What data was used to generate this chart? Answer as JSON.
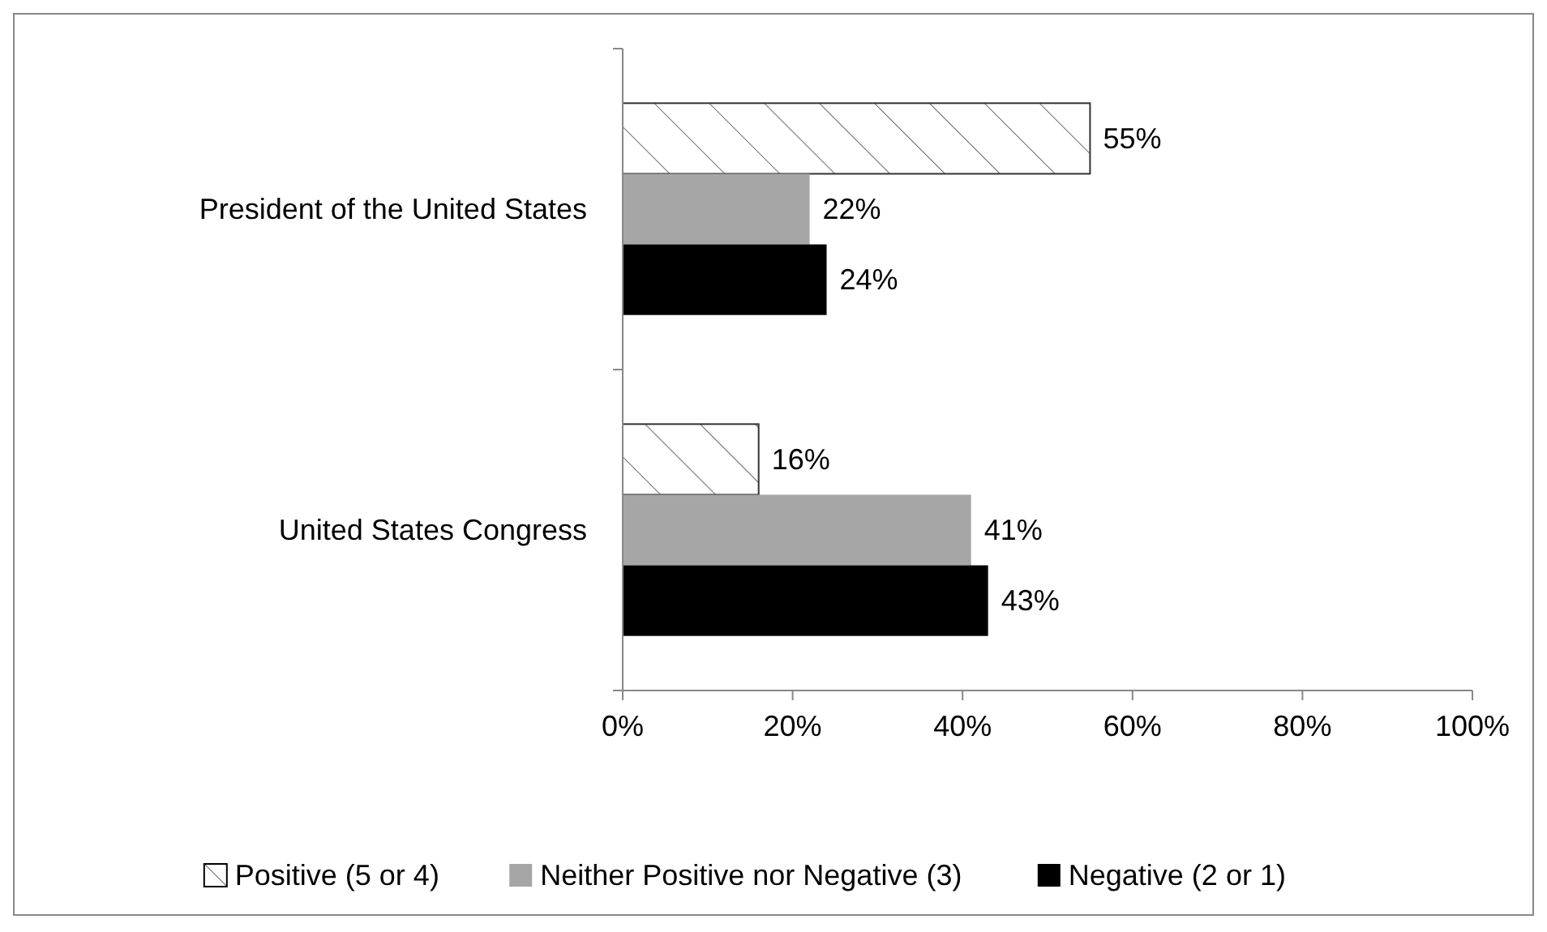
{
  "chart_data": {
    "type": "bar",
    "orientation": "horizontal",
    "categories": [
      "President of the United States",
      "United States Congress"
    ],
    "series": [
      {
        "name": "Positive (5 or 4)",
        "color": "#ffffff",
        "values": [
          55,
          16
        ],
        "value_labels": [
          "55%",
          "16%"
        ]
      },
      {
        "name": "Neither Positive nor Negative (3)",
        "color": "#a6a6a6",
        "values": [
          22,
          41
        ],
        "value_labels": [
          "22%",
          "41%"
        ]
      },
      {
        "name": "Negative (2 or 1)",
        "color": "#000000",
        "values": [
          24,
          43
        ],
        "value_labels": [
          "24%",
          "43%"
        ]
      }
    ],
    "xlim": [
      0,
      100
    ],
    "xticks": [
      {
        "value": 0,
        "label": "0%"
      },
      {
        "value": 20,
        "label": "20%"
      },
      {
        "value": 40,
        "label": "40%"
      },
      {
        "value": 60,
        "label": "60%"
      },
      {
        "value": 80,
        "label": "80%"
      },
      {
        "value": 100,
        "label": "100%"
      }
    ],
    "grid": false,
    "legend": "bottom"
  }
}
